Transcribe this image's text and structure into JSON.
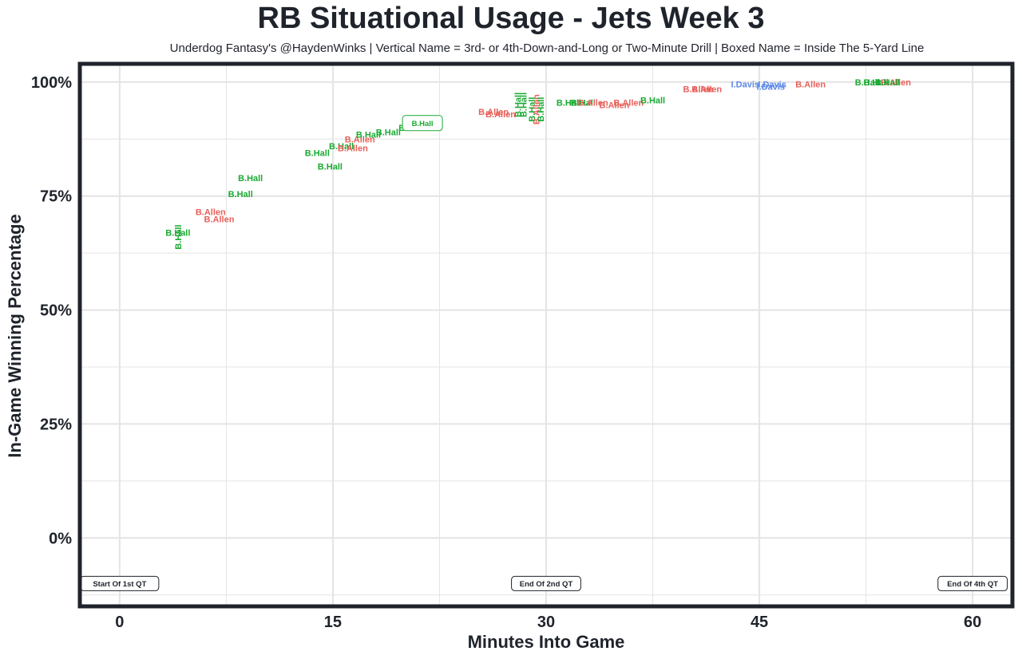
{
  "chart_data": {
    "type": "scatter",
    "title": "RB Situational Usage - Jets Week 3",
    "subtitle": "Underdog Fantasy's @HaydenWinks | Vertical Name = 3rd- or 4th-Down-and-Long or Two-Minute Drill | Boxed Name = Inside The 5-Yard Line",
    "xlabel": "Minutes Into Game",
    "ylabel": "In-Game Winning Percentage",
    "xlim": [
      -2.8,
      62.8
    ],
    "ylim": [
      -15,
      104
    ],
    "x_ticks": [
      0,
      15,
      30,
      45,
      60
    ],
    "x_tick_labels": [
      "0",
      "15",
      "30",
      "45",
      "60"
    ],
    "y_ticks": [
      0,
      25,
      50,
      75,
      100
    ],
    "y_tick_labels": [
      "0%",
      "25%",
      "50%",
      "75%",
      "100%"
    ],
    "grid": true,
    "colors": {
      "B.Hall": "#1aaa32",
      "B.Allen": "#e8605a",
      "I.Davis": "#5a88e6",
      "frame": "#1f232b",
      "grid": "#e4e4e4"
    },
    "quarter_markers": [
      {
        "x": 0,
        "label": "Start Of 1st QT"
      },
      {
        "x": 30,
        "label": "End Of 2nd QT"
      },
      {
        "x": 60,
        "label": "End Of 4th QT"
      }
    ],
    "points": [
      {
        "x": 4.1,
        "y": 67,
        "label": "B.Hall",
        "style": "normal"
      },
      {
        "x": 4.1,
        "y": 66,
        "label": "B.Hall",
        "style": "vertical"
      },
      {
        "x": 7.0,
        "y": 70,
        "label": "B.Allen",
        "style": "normal"
      },
      {
        "x": 6.4,
        "y": 71.5,
        "label": "B.Allen",
        "style": "normal"
      },
      {
        "x": 8.5,
        "y": 75.5,
        "label": "B.Hall",
        "style": "normal"
      },
      {
        "x": 9.2,
        "y": 79,
        "label": "B.Hall",
        "style": "normal"
      },
      {
        "x": 13.9,
        "y": 84.5,
        "label": "B.Hall",
        "style": "normal"
      },
      {
        "x": 14.8,
        "y": 81.5,
        "label": "B.Hall",
        "style": "normal"
      },
      {
        "x": 15.6,
        "y": 86,
        "label": "B.Hall",
        "style": "normal"
      },
      {
        "x": 16.4,
        "y": 85.5,
        "label": "B.Allen",
        "style": "normal"
      },
      {
        "x": 16.9,
        "y": 87.5,
        "label": "B.Allen",
        "style": "normal"
      },
      {
        "x": 17.5,
        "y": 88.5,
        "label": "B.Hall",
        "style": "normal"
      },
      {
        "x": 18.9,
        "y": 89,
        "label": "B.Hall",
        "style": "normal"
      },
      {
        "x": 20.5,
        "y": 90,
        "label": "B.Hall",
        "style": "normal"
      },
      {
        "x": 21.3,
        "y": 91,
        "label": "B.Hall",
        "style": "boxed"
      },
      {
        "x": 26.3,
        "y": 93.5,
        "label": "B.Allen",
        "style": "normal"
      },
      {
        "x": 26.8,
        "y": 93,
        "label": "B.Allen",
        "style": "normal"
      },
      {
        "x": 28.0,
        "y": 95,
        "label": "B.Hall",
        "style": "vertical"
      },
      {
        "x": 28.4,
        "y": 95,
        "label": "B.Hall",
        "style": "vertical"
      },
      {
        "x": 29.0,
        "y": 94,
        "label": "B.Hall",
        "style": "vertical"
      },
      {
        "x": 29.3,
        "y": 94,
        "label": "B.Allen",
        "style": "vertical"
      },
      {
        "x": 29.6,
        "y": 94,
        "label": "B.Hall",
        "style": "vertical"
      },
      {
        "x": 31.6,
        "y": 95.5,
        "label": "B.Hall",
        "style": "normal"
      },
      {
        "x": 32.6,
        "y": 95.5,
        "label": "B.Hall",
        "style": "normal"
      },
      {
        "x": 33.3,
        "y": 95.5,
        "label": "B.Allen",
        "style": "normal"
      },
      {
        "x": 34.8,
        "y": 95,
        "label": "B.Allen",
        "style": "normal"
      },
      {
        "x": 35.8,
        "y": 95.5,
        "label": "B.Allen",
        "style": "normal"
      },
      {
        "x": 37.5,
        "y": 96,
        "label": "B.Hall",
        "style": "normal"
      },
      {
        "x": 40.7,
        "y": 98.5,
        "label": "B.Allen",
        "style": "normal"
      },
      {
        "x": 41.3,
        "y": 98.5,
        "label": "B.Allen",
        "style": "normal"
      },
      {
        "x": 44.0,
        "y": 99.5,
        "label": "I.Davis",
        "style": "normal"
      },
      {
        "x": 45.8,
        "y": 99,
        "label": "I.Davis",
        "style": "normal"
      },
      {
        "x": 45.9,
        "y": 99.5,
        "label": "I.Davis",
        "style": "normal"
      },
      {
        "x": 48.6,
        "y": 99.5,
        "label": "B.Allen",
        "style": "normal"
      },
      {
        "x": 52.6,
        "y": 100,
        "label": "B.Hall",
        "style": "normal"
      },
      {
        "x": 53.2,
        "y": 100,
        "label": "B.Hall",
        "style": "normal"
      },
      {
        "x": 54.6,
        "y": 100,
        "label": "B.Allen",
        "style": "normal"
      },
      {
        "x": 54.0,
        "y": 100,
        "label": "B.Hall",
        "style": "normal"
      }
    ]
  }
}
